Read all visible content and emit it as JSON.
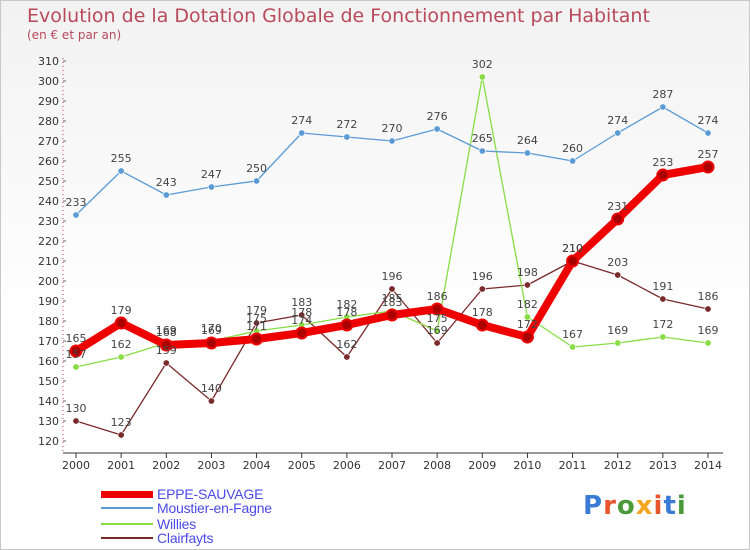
{
  "title": "Evolution de la Dotation Globale de Fonctionnement par Habitant",
  "subtitle": "(en € et par an)",
  "logo_text": "Proxiti",
  "chart_data": {
    "type": "line",
    "title": "Evolution de la Dotation Globale de Fonctionnement par Habitant",
    "subtitle": "(en € et par an)",
    "xlabel": "",
    "ylabel": "",
    "x": [
      "2000",
      "2001",
      "2002",
      "2003",
      "2004",
      "2005",
      "2006",
      "2007",
      "2008",
      "2009",
      "2010",
      "2011",
      "2012",
      "2013",
      "2014"
    ],
    "ylim": [
      120,
      310
    ],
    "yticks": [
      120,
      130,
      140,
      150,
      160,
      170,
      180,
      190,
      200,
      210,
      220,
      230,
      240,
      250,
      260,
      270,
      280,
      290,
      300,
      310
    ],
    "grid": false,
    "legend_position": "bottom-left",
    "series": [
      {
        "name": "EPPE-SAUVAGE",
        "color": "#ee0000",
        "values": [
          165,
          179,
          168,
          169,
          171,
          174,
          178,
          183,
          186,
          178,
          172,
          210,
          231,
          253,
          257
        ],
        "labels": [
          "165",
          "179",
          "168",
          "169",
          "171",
          "174",
          "178",
          "183",
          "186",
          "178",
          "172",
          "210",
          "231",
          "253",
          "257"
        ]
      },
      {
        "name": "Moustier-en-Fagne",
        "color": "#5b9bd5",
        "values": [
          233,
          255,
          243,
          247,
          250,
          274,
          272,
          270,
          276,
          265,
          264,
          260,
          274,
          287,
          274
        ],
        "labels": [
          "233",
          "255",
          "243",
          "247",
          "250",
          "274",
          "272",
          "270",
          "276",
          "265",
          "264",
          "260",
          "274",
          "287",
          "274"
        ]
      },
      {
        "name": "Willies",
        "color": "#88dd44",
        "values": [
          157,
          162,
          169,
          170,
          175,
          178,
          182,
          185,
          175,
          302,
          182,
          167,
          169,
          172,
          169
        ],
        "labels": [
          "157",
          "162",
          "169",
          "170",
          "175",
          "178",
          "182",
          "185",
          "175",
          "302",
          "182",
          "167",
          "169",
          "172",
          "169"
        ]
      },
      {
        "name": "Clairfayts",
        "color": "#7a2a2a",
        "values": [
          130,
          123,
          159,
          140,
          179,
          183,
          162,
          196,
          169,
          196,
          198,
          210,
          203,
          191,
          186
        ],
        "labels": [
          "130",
          "123",
          "159",
          "140",
          "179",
          "183",
          "162",
          "196",
          "169",
          "196",
          "198",
          "210",
          "203",
          "191",
          "186"
        ]
      }
    ]
  }
}
